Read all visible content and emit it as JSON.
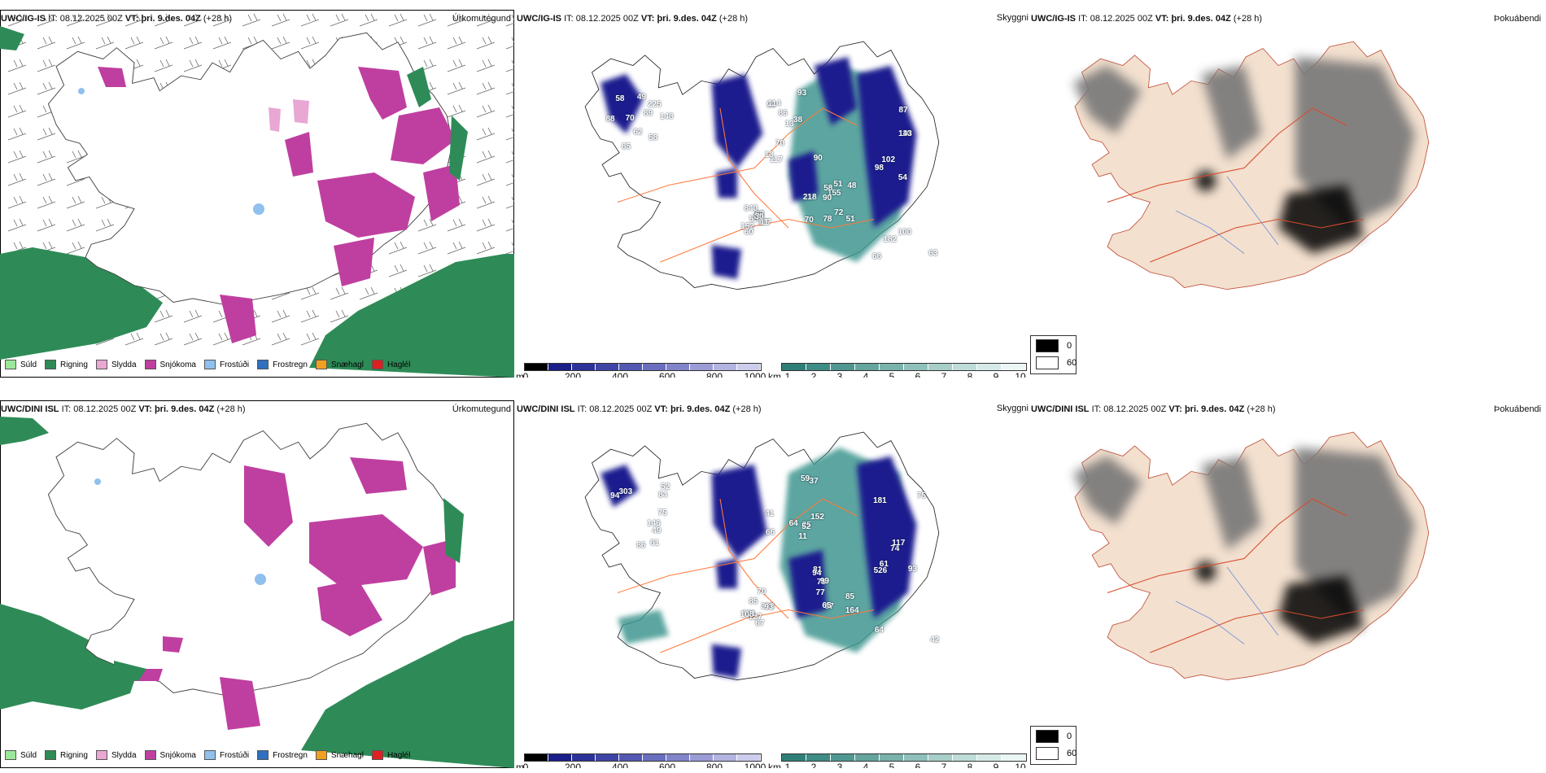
{
  "colors": {
    "precip_green": "#2e8b57",
    "snow_magenta": "#bf3fa0",
    "sleet_pink": "#e9a7d3",
    "drizzle_lightgreen": "#9be89b",
    "freezing_drizzle_lightblue": "#8fc0ee",
    "freezing_rain_blue": "#3070c0",
    "graupel_orange": "#f0a020",
    "hail_red": "#e02020",
    "cloud_navy": "#1c1f8f",
    "cloud_teal": "#3f9690",
    "land_beige": "#f3e0cf",
    "road_orange": "#ff7a3a",
    "river_blue": "#6f8fd8"
  },
  "rows": [
    {
      "model": "UWC/IG-IS",
      "it_label": "IT:",
      "it_value": "08.12.2025 00Z",
      "vt_label": "VT:",
      "vt_value": "þri. 9.des. 04Z",
      "lead": "(+28 h)",
      "precip_title": "Úrkomutegund",
      "visibility_title": "Skyggni",
      "fog_title": "Þokuábendi",
      "cloud_labels": [
        "62",
        "59",
        "54",
        "70",
        "84",
        "85",
        "93",
        "10",
        "51",
        "53",
        "58",
        "90",
        "98",
        "48",
        "55",
        "89",
        "117",
        "143",
        "155",
        "152",
        "70",
        "13",
        "182",
        "58",
        "62",
        "58",
        "114",
        "87",
        "218",
        "177",
        "148",
        "13",
        "100",
        "90",
        "840",
        "225",
        "70",
        "63",
        "51",
        "11",
        "49",
        "86",
        "102",
        "72",
        "60",
        "88",
        "38",
        "66",
        "78",
        "30"
      ]
    },
    {
      "model": "UWC/DINI ISL",
      "it_label": "IT:",
      "it_value": "08.12.2025 00Z",
      "vt_label": "VT:",
      "vt_value": "þri. 9.des. 04Z",
      "lead": "(+28 h)",
      "precip_title": "Úrkomutegund",
      "visibility_title": "Skyggni",
      "fog_title": "Þokuábendi",
      "cloud_labels": [
        "146",
        "152",
        "64",
        "81",
        "85",
        "61",
        "66",
        "75",
        "75",
        "67",
        "94",
        "41",
        "181",
        "164",
        "127",
        "75",
        "64",
        "93",
        "99",
        "101",
        "52",
        "37",
        "74",
        "85",
        "70",
        "303",
        "25",
        "526",
        "94",
        "368",
        "86",
        "11",
        "117",
        "77",
        "93",
        "49",
        "52",
        "61",
        "87",
        "108",
        "84",
        "59",
        "42",
        "65"
      ]
    }
  ],
  "precip_legend": [
    "Súld",
    "Rigning",
    "Slydda",
    "Snjókoma",
    "Frostúði",
    "Frostregn",
    "Snæhagl",
    "Haglél"
  ],
  "cloudbase_scale": {
    "unit": "m",
    "ticks": [
      "0",
      "200",
      "400",
      "600",
      "800",
      "1000"
    ]
  },
  "visibility_scale": {
    "unit": "km",
    "ticks": [
      "1",
      "2",
      "3",
      "4",
      "5",
      "6",
      "7",
      "8",
      "9",
      "10"
    ]
  },
  "fog_legend": {
    "high": "0",
    "low": "60"
  }
}
